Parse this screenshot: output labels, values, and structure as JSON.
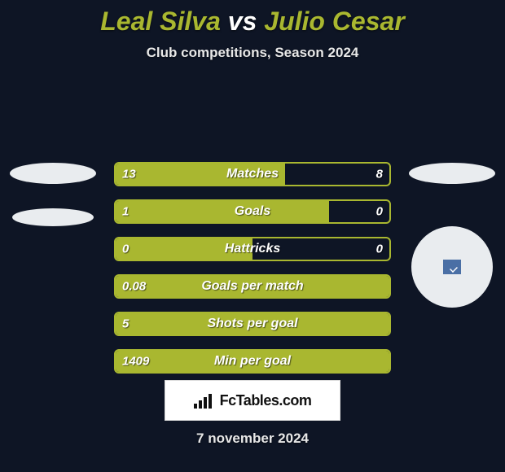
{
  "title_parts": {
    "p1_accent": "Leal Silva",
    "p2_plain": " vs ",
    "p3_accent": "Julio Cesar"
  },
  "subtitle": "Club competitions, Season 2024",
  "date": "7 november 2024",
  "logo_text": "FcTables.com",
  "colors": {
    "background": "#0e1525",
    "accent": "#a9b730",
    "bar_fill": "#a9b730",
    "bar_border": "#a9b730",
    "row_bg": "#0e1525",
    "text": "#ffffff"
  },
  "bars": [
    {
      "label": "Matches",
      "left": "13",
      "right": "8",
      "fill_pct": 62
    },
    {
      "label": "Goals",
      "left": "1",
      "right": "0",
      "fill_pct": 78
    },
    {
      "label": "Hattricks",
      "left": "0",
      "right": "0",
      "fill_pct": 50
    },
    {
      "label": "Goals per match",
      "left": "0.08",
      "right": "",
      "fill_pct": 100
    },
    {
      "label": "Shots per goal",
      "left": "5",
      "right": "",
      "fill_pct": 100
    },
    {
      "label": "Min per goal",
      "left": "1409",
      "right": "",
      "fill_pct": 100
    }
  ]
}
